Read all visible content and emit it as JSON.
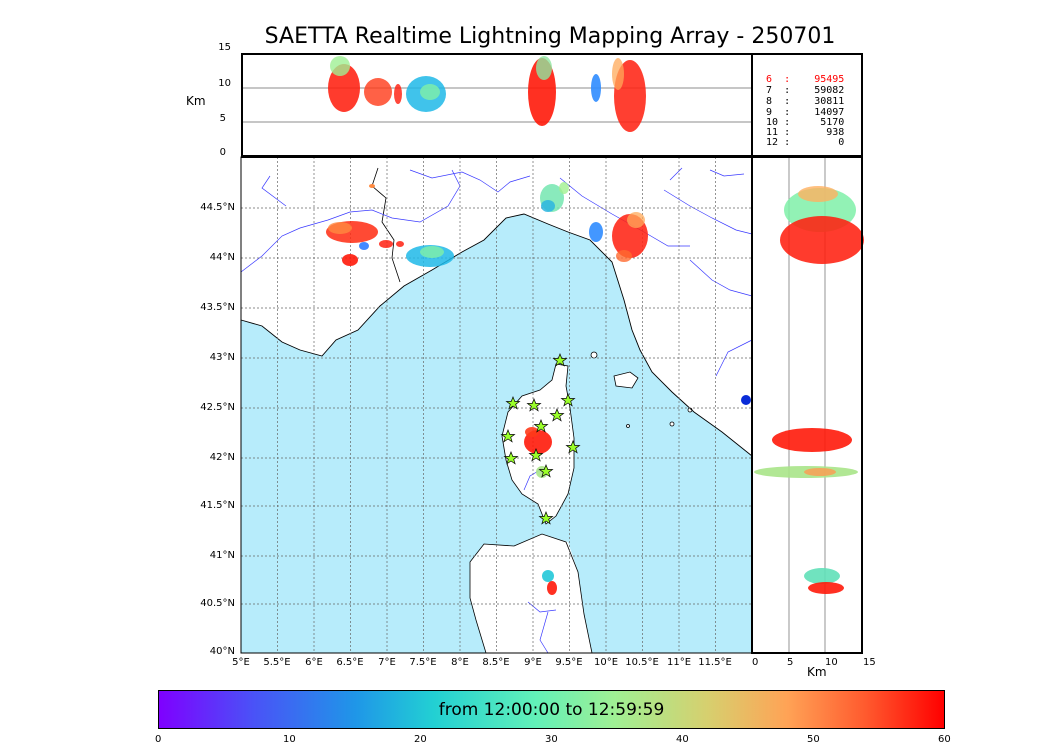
{
  "title": "SAETTA Realtime Lightning Mapping Array - 250701",
  "colorbar": {
    "text": "from 12:00:00 to 12:59:59",
    "ticks": [
      "0",
      "10",
      "20",
      "30",
      "40",
      "50",
      "60"
    ]
  },
  "altitude_panel": {
    "ylabel": "Km",
    "yticks": [
      "15",
      "10",
      "5",
      "0"
    ]
  },
  "side_panel": {
    "xlabel": "Km",
    "xticks": [
      "0",
      "5",
      "10",
      "15"
    ]
  },
  "map": {
    "lon_ticks": [
      "5°E",
      "5.5°E",
      "6°E",
      "6.5°E",
      "7°E",
      "7.5°E",
      "8°E",
      "8.5°E",
      "9°E",
      "9.5°E",
      "10°E",
      "10.5°E",
      "11°E",
      "11.5°E"
    ],
    "lat_ticks": [
      "44.5°N",
      "44°N",
      "43.5°N",
      "43°N",
      "42.5°N",
      "42°N",
      "41.5°N",
      "41°N",
      "40.5°N",
      "40°N"
    ]
  },
  "stats": [
    {
      "n": "6",
      "v": "95495",
      "color": "#ff0000"
    },
    {
      "n": "7",
      "v": "59082",
      "color": "#000000"
    },
    {
      "n": "8",
      "v": "30811",
      "color": "#000000"
    },
    {
      "n": "9",
      "v": "14097",
      "color": "#000000"
    },
    {
      "n": "10",
      "v": "5170",
      "color": "#000000"
    },
    {
      "n": "11",
      "v": "938",
      "color": "#000000"
    },
    {
      "n": "12",
      "v": "0",
      "color": "#000000"
    }
  ],
  "colors": {
    "sea": "#b7ecfb",
    "river": "#3a3aff",
    "station": "#9bff2a"
  }
}
